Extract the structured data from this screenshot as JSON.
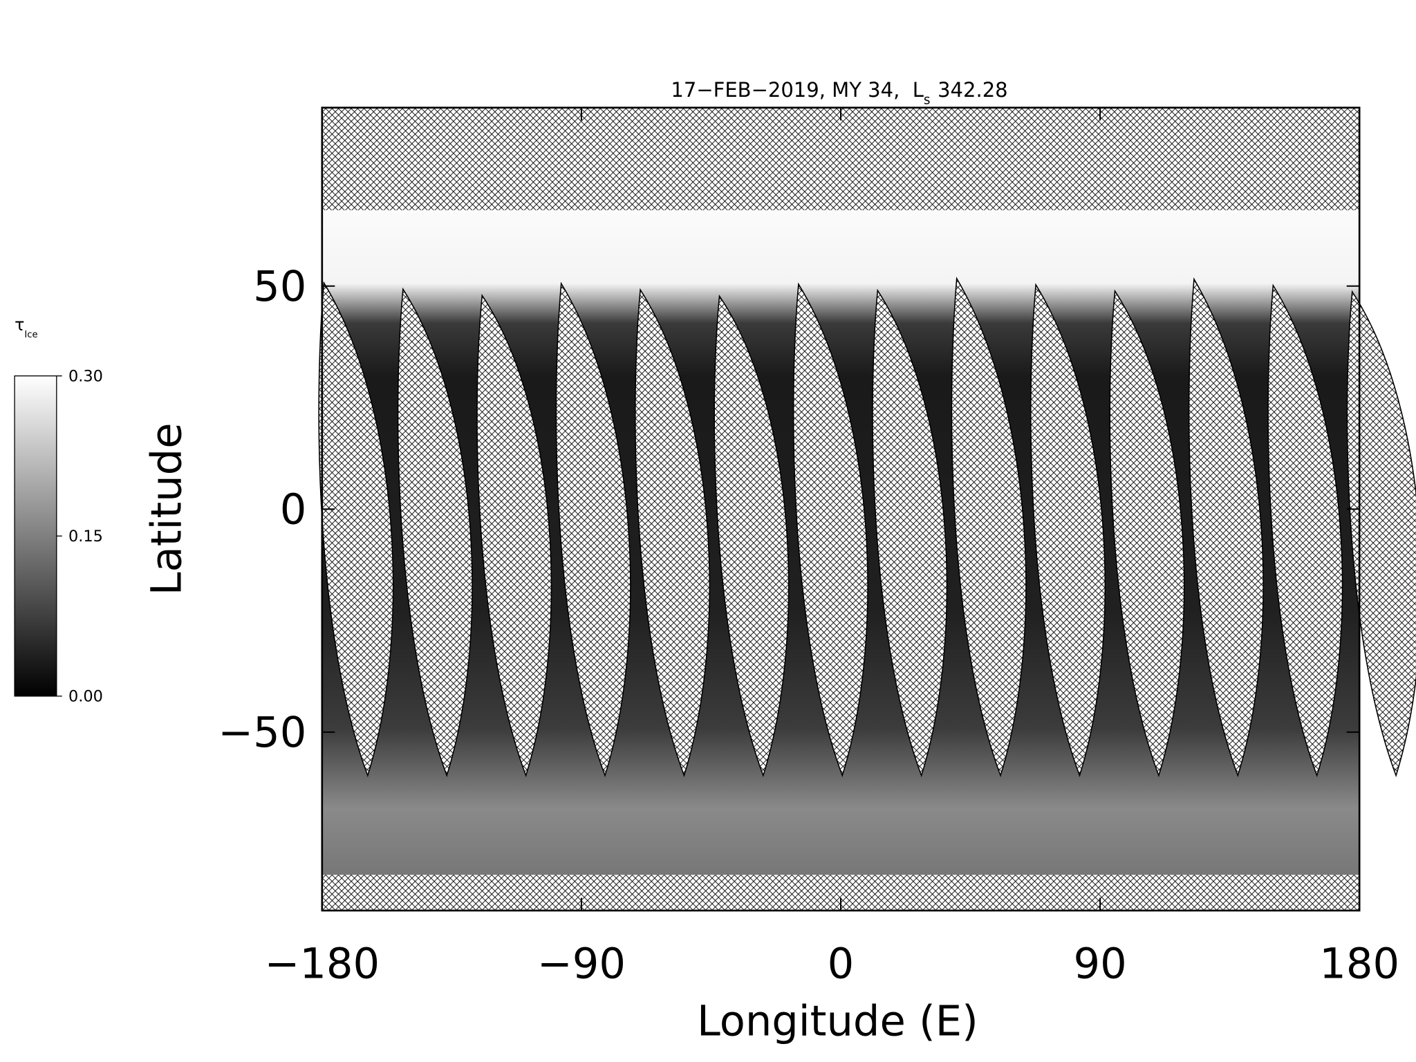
{
  "chart_data": {
    "type": "map",
    "title": "17−FEB−2019, MY 34,  L",
    "title_subscript": "s",
    "title_end": "342.28",
    "x_label": "Longitude (E)",
    "y_label": "Latitude",
    "xlim": [
      -180,
      180
    ],
    "ylim": [
      -90,
      90
    ],
    "xticks": [
      {
        "value": -180,
        "label": "−180"
      },
      {
        "value": -90,
        "label": "−90"
      },
      0,
      90,
      180
    ],
    "yticks": [
      {
        "value": -50,
        "label": "−50"
      },
      0,
      50
    ],
    "colorbar": {
      "label": "τ",
      "label_subscript": "Ice",
      "lim": [
        0,
        0.3
      ],
      "ticks": [
        {
          "value": 0,
          "label": "0.00"
        },
        {
          "value": 0.15,
          "label": "0.15"
        },
        {
          "value": 0.3,
          "label": "0.30"
        }
      ]
    }
  }
}
